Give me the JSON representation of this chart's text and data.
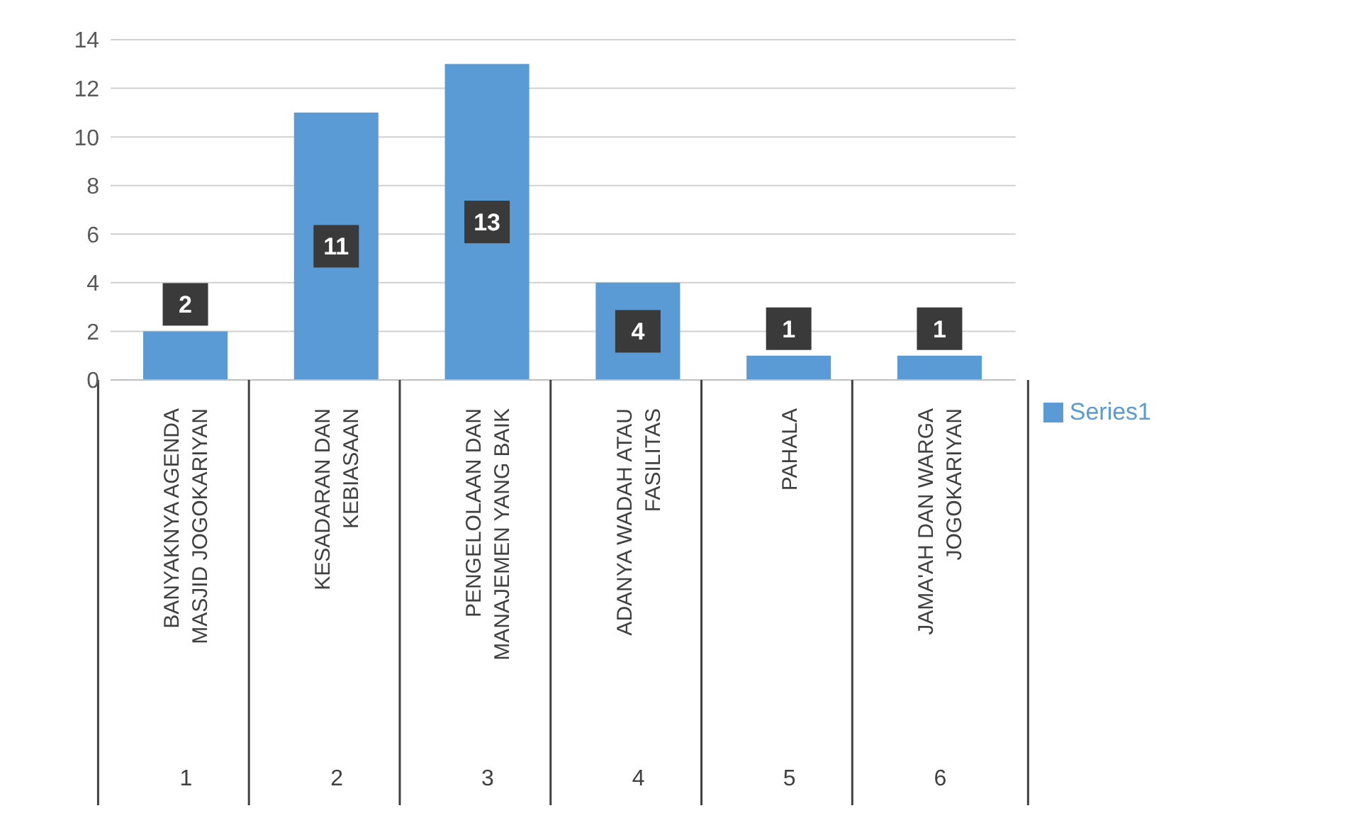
{
  "chart_data": {
    "type": "bar",
    "categories": [
      "BANYAKNYA AGENDA MASJID JOGOKARIYAN",
      "KESADARAN DAN KEBIASAAN",
      "PENGELOLAAN DAN MANAJEMEN YANG BAIK",
      "ADANYA WADAH ATAU FASILITAS",
      "PAHALA",
      "JAMA'AH DAN WARGA JOGOKARIYAN"
    ],
    "series": [
      {
        "name": "Series1",
        "color": "#5b9bd5",
        "values": [
          2,
          11,
          13,
          4,
          1,
          1
        ]
      }
    ],
    "ylim": [
      0,
      14
    ],
    "yticks": [
      0,
      2,
      4,
      6,
      8,
      10,
      12,
      14
    ],
    "grid": "y",
    "legend": "right",
    "data_labels": true,
    "annotations": [
      "1",
      "2",
      "3",
      "4",
      "5",
      "6"
    ]
  }
}
